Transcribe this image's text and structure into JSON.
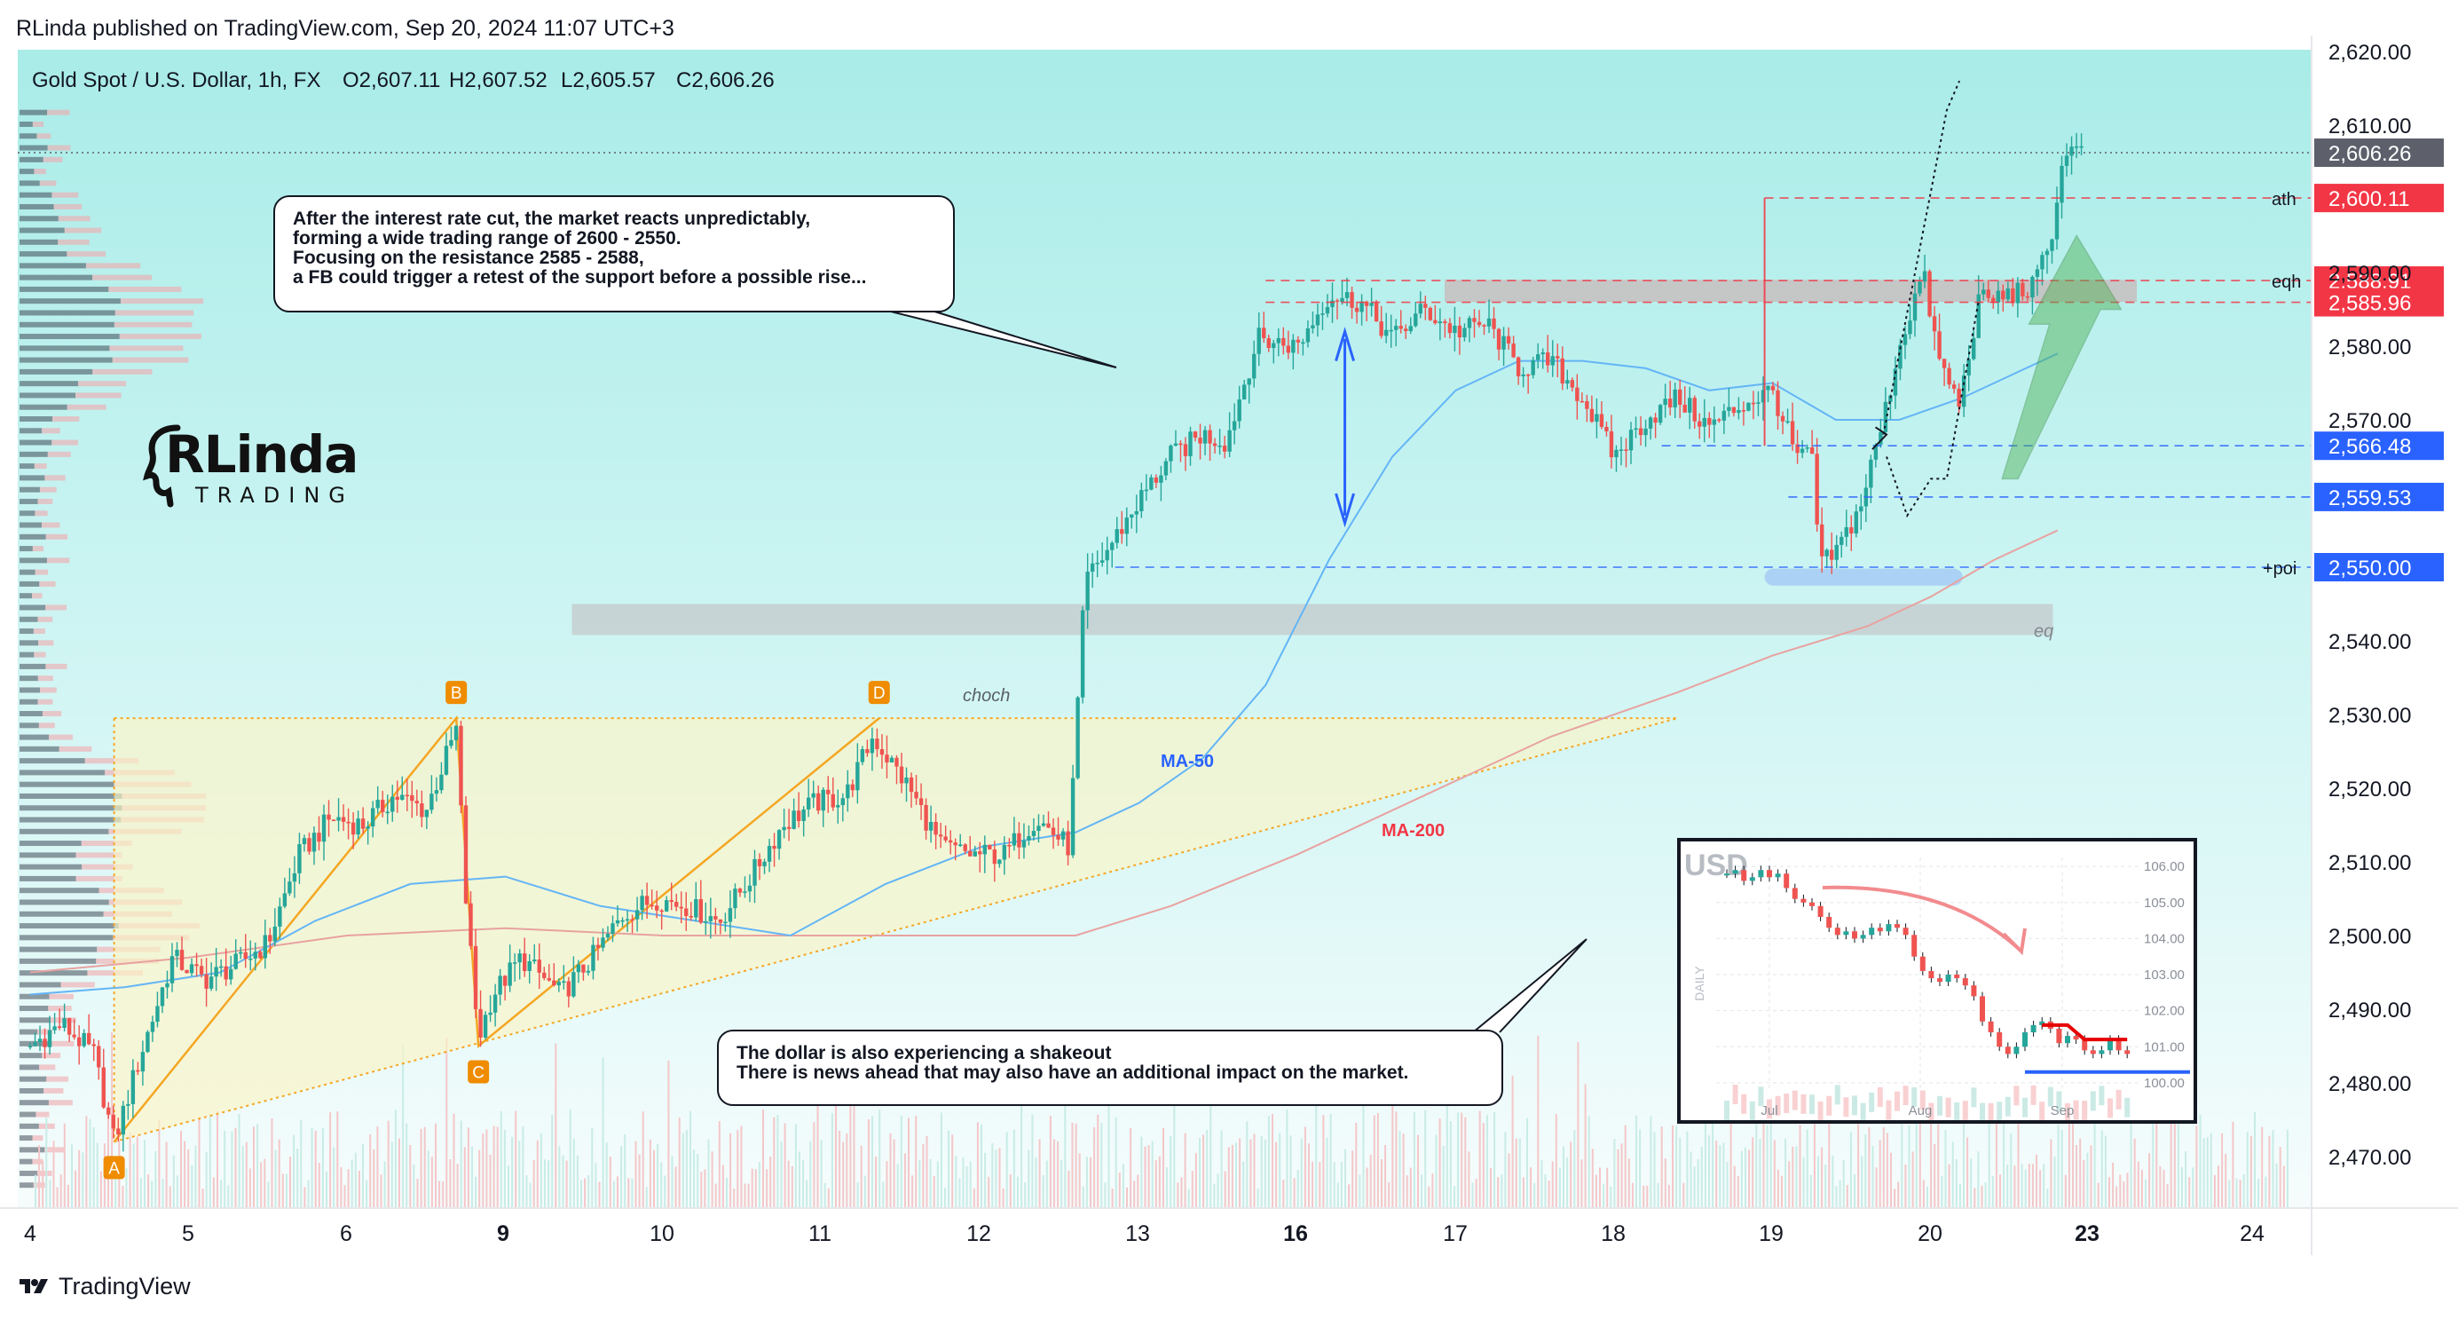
{
  "header": {
    "published": "RLinda published on TradingView.com, Sep 20, 2024 11:07 UTC+3"
  },
  "footer": {
    "brand": "TradingView",
    "logo_icon": "tradingview-logo-icon"
  },
  "logo": {
    "main": "RLinda",
    "sub": "TRADING"
  },
  "annotations": {
    "box1": [
      "After the interest rate cut, the market reacts unpredictably,",
      "forming a wide trading range of 2600 - 2550.",
      "Focusing on the resistance 2585 - 2588,",
      "a FB could trigger a retest of the support before a possible rise..."
    ],
    "box2": [
      "The dollar is also experiencing a shakeout",
      "There is news ahead that may also have an additional impact on the market."
    ]
  },
  "colors": {
    "bull": "#26a69a",
    "bear": "#ef5350",
    "ma50": "#64b5f6",
    "ma200": "#e8a2a0",
    "level_blue": "#2962ff",
    "level_red": "#f23645",
    "pattern": "#f5a623",
    "label_bg": "#ef8c00",
    "last_price_bg": "#5d606b"
  },
  "chart_data": {
    "type": "candlestick",
    "symbol": "Gold Spot / U.S. Dollar, 1h, FX",
    "ohlc": {
      "O": "O2,607.11",
      "H": "H2,607.52",
      "L": "L2,605.57",
      "C": "C2,606.26"
    },
    "ylim": [
      2462,
      2623
    ],
    "y_ticks": [
      "2,620.00",
      "2,610.00",
      "2,590.00",
      "2,580.00",
      "2,570.00",
      "2,540.00",
      "2,530.00",
      "2,520.00",
      "2,510.00",
      "2,500.00",
      "2,490.00",
      "2,480.00",
      "2,470.00"
    ],
    "y_tick_values": [
      2620,
      2610,
      2590,
      2580,
      2570,
      2540,
      2530,
      2520,
      2510,
      2500,
      2490,
      2480,
      2470
    ],
    "x_ticks": [
      "4",
      "5",
      "6",
      "9",
      "10",
      "11",
      "12",
      "13",
      "16",
      "17",
      "18",
      "19",
      "20",
      "23",
      "24"
    ],
    "x_tick_bold": [
      "9",
      "16",
      "23"
    ],
    "x_tick_index": [
      0,
      1,
      2,
      3,
      4,
      5,
      6,
      7,
      8,
      9,
      10,
      11,
      12,
      13,
      14
    ],
    "price_labels": [
      {
        "text": "2,606.26",
        "value": 2606.26,
        "kind": "last"
      },
      {
        "text": "2,600.11",
        "value": 2600.11,
        "kind": "red"
      },
      {
        "text": "2,588.91",
        "value": 2588.91,
        "kind": "red"
      },
      {
        "text": "2,585.96",
        "value": 2585.96,
        "kind": "red"
      },
      {
        "text": "2,566.48",
        "value": 2566.48,
        "kind": "blue"
      },
      {
        "text": "2,559.53",
        "value": 2559.53,
        "kind": "blue"
      },
      {
        "text": "2,550.00",
        "value": 2550.0,
        "kind": "blue"
      }
    ],
    "level_tags": [
      {
        "text": "ath",
        "value": 2600.11
      },
      {
        "text": "eqh",
        "value": 2588.91
      },
      {
        "text": "+poi",
        "value": 2550.0
      },
      {
        "text": "eq",
        "value": 2540.8
      }
    ],
    "text_annotations": {
      "choch": "choch",
      "ma50": "MA-50",
      "ma200": "MA-200"
    },
    "pattern_points": [
      {
        "label": "A",
        "x": 5.3,
        "value": 2472.0
      },
      {
        "label": "B",
        "x": 26.9,
        "value": 2529.5
      },
      {
        "label": "C",
        "x": 28.3,
        "value": 2485.0
      },
      {
        "label": "D",
        "x": 53.6,
        "value": 2529.5
      }
    ],
    "zones": [
      {
        "name": "eqh-zone",
        "from": 2586.0,
        "to": 2589.0
      },
      {
        "name": "eq-zone",
        "from": 2540.8,
        "to": 2545.0
      },
      {
        "name": "poi-zone",
        "from": 2547.5,
        "to": 2549.8
      }
    ],
    "path": [
      [
        0,
        2485
      ],
      [
        2,
        2488
      ],
      [
        4,
        2484
      ],
      [
        5.3,
        2472
      ],
      [
        7,
        2484
      ],
      [
        9,
        2497
      ],
      [
        11,
        2494
      ],
      [
        13,
        2496
      ],
      [
        15,
        2499
      ],
      [
        17,
        2511
      ],
      [
        19,
        2516
      ],
      [
        21,
        2515
      ],
      [
        23,
        2519
      ],
      [
        25,
        2517
      ],
      [
        26.9,
        2528
      ],
      [
        27.5,
        2505
      ],
      [
        28.3,
        2486
      ],
      [
        29.2,
        2492
      ],
      [
        31,
        2497
      ],
      [
        33.5,
        2492
      ],
      [
        35.5,
        2497
      ],
      [
        37.5,
        2503
      ],
      [
        39.5,
        2505
      ],
      [
        41.5,
        2504
      ],
      [
        43.5,
        2502
      ],
      [
        45.5,
        2508
      ],
      [
        47.5,
        2515
      ],
      [
        49.5,
        2518
      ],
      [
        51.5,
        2519
      ],
      [
        53.2,
        2527
      ],
      [
        55.5,
        2520
      ],
      [
        57.5,
        2512
      ],
      [
        59.5,
        2511
      ],
      [
        61.5,
        2511
      ],
      [
        63.5,
        2516
      ],
      [
        65.6,
        2512
      ],
      [
        66.6,
        2548
      ],
      [
        67.6,
        2551
      ],
      [
        70,
        2559
      ],
      [
        72,
        2565
      ],
      [
        74,
        2568
      ],
      [
        75.5,
        2567
      ],
      [
        77.5,
        2581
      ],
      [
        80,
        2580
      ],
      [
        82,
        2587
      ],
      [
        84,
        2586
      ],
      [
        86,
        2581
      ],
      [
        88,
        2585
      ],
      [
        90,
        2582
      ],
      [
        92,
        2583
      ],
      [
        94,
        2577
      ],
      [
        96,
        2578
      ],
      [
        98,
        2573
      ],
      [
        100,
        2565
      ],
      [
        102,
        2570
      ],
      [
        104,
        2573
      ],
      [
        106,
        2569
      ],
      [
        108,
        2572
      ],
      [
        110,
        2574
      ],
      [
        111.5,
        2565
      ],
      [
        112.5,
        2565
      ],
      [
        113,
        2550
      ],
      [
        114,
        2552
      ],
      [
        115.5,
        2558
      ],
      [
        117,
        2570
      ],
      [
        118,
        2580
      ],
      [
        119.5,
        2590
      ],
      [
        120.5,
        2578
      ],
      [
        121.8,
        2572
      ],
      [
        123,
        2586
      ],
      [
        125,
        2587
      ],
      [
        126.5,
        2588
      ],
      [
        127.5,
        2594
      ],
      [
        128.5,
        2607
      ],
      [
        129.5,
        2606
      ]
    ],
    "ma50": [
      [
        0,
        2492
      ],
      [
        6,
        2493
      ],
      [
        12,
        2495
      ],
      [
        18,
        2502
      ],
      [
        24,
        2507
      ],
      [
        30,
        2508
      ],
      [
        36,
        2504
      ],
      [
        42,
        2502
      ],
      [
        48,
        2500
      ],
      [
        54,
        2507
      ],
      [
        60,
        2512
      ],
      [
        66,
        2514
      ],
      [
        70,
        2518
      ],
      [
        74,
        2524
      ],
      [
        78,
        2534
      ],
      [
        82,
        2551
      ],
      [
        86,
        2565
      ],
      [
        90,
        2574
      ],
      [
        94,
        2578
      ],
      [
        98,
        2578
      ],
      [
        102,
        2577
      ],
      [
        106,
        2574
      ],
      [
        110,
        2575
      ],
      [
        114,
        2570
      ],
      [
        118,
        2570
      ],
      [
        122,
        2573
      ],
      [
        126,
        2577
      ],
      [
        128,
        2579
      ]
    ],
    "ma200": [
      [
        0,
        2495
      ],
      [
        10,
        2497
      ],
      [
        20,
        2500
      ],
      [
        30,
        2501
      ],
      [
        40,
        2500
      ],
      [
        50,
        2500
      ],
      [
        60,
        2500
      ],
      [
        66,
        2500
      ],
      [
        72,
        2504
      ],
      [
        80,
        2511
      ],
      [
        88,
        2519
      ],
      [
        96,
        2527
      ],
      [
        104,
        2533
      ],
      [
        110,
        2538
      ],
      [
        116,
        2542
      ],
      [
        120,
        2546
      ],
      [
        124,
        2551
      ],
      [
        128,
        2555
      ]
    ],
    "inset": {
      "title": "USD",
      "side_label": "DAILY",
      "y_ticks": [
        "106.00",
        "105.00",
        "104.00",
        "103.00",
        "102.00",
        "101.00",
        "100.00"
      ],
      "x_ticks": [
        "Jul",
        "Aug",
        "Sep"
      ],
      "ylim": [
        99.8,
        106.2
      ],
      "series": [
        105.8,
        105.9,
        105.6,
        105.7,
        105.9,
        105.7,
        105.8,
        105.4,
        105.1,
        105.0,
        104.9,
        104.6,
        104.3,
        104.1,
        104.2,
        104.0,
        104.1,
        104.3,
        104.2,
        104.4,
        104.3,
        104.1,
        103.5,
        103.1,
        102.9,
        102.8,
        103.0,
        102.9,
        102.7,
        102.4,
        101.7,
        101.4,
        101.0,
        100.8,
        101.0,
        101.4,
        101.6,
        101.7,
        101.5,
        101.1,
        101.3,
        101.2,
        100.9,
        100.8,
        100.9,
        101.2,
        100.9,
        100.8
      ],
      "resistance": 101.6,
      "support": 100.3
    }
  }
}
